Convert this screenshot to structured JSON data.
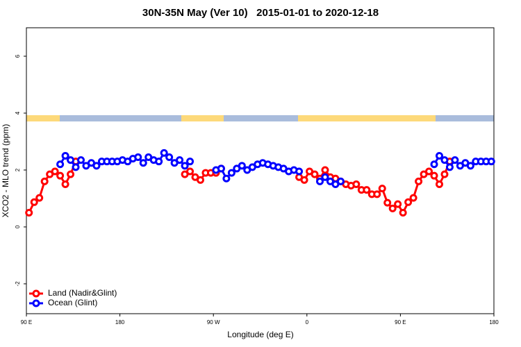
{
  "chart_data": {
    "type": "line",
    "title": "30N-35N May (Ver 10)   2015-01-01 to 2020-12-18",
    "x_label": "Longitude (deg E)",
    "y_label": "XCO2 - MLO trend (ppm)",
    "x": [
      92.5,
      97.5,
      102.5,
      107.5,
      112.5,
      117.5,
      122.5,
      127.5,
      132.5,
      137.5,
      142.5,
      147.5,
      152.5,
      157.5,
      162.5,
      167.5,
      172.5,
      177.5,
      182.5,
      187.5,
      192.5,
      197.5,
      202.5,
      207.5,
      212.5,
      217.5,
      222.5,
      227.5,
      232.5,
      237.5,
      242.5,
      247.5,
      252.5,
      257.5,
      262.5,
      267.5,
      272.5,
      277.5,
      282.5,
      287.5,
      292.5,
      297.5,
      302.5,
      307.5,
      312.5,
      317.5,
      322.5,
      327.5,
      332.5,
      337.5,
      342.5,
      347.5,
      352.5,
      357.5,
      362.5,
      367.5,
      372.5,
      377.5,
      382.5,
      387.5,
      392.5,
      397.5,
      402.5,
      407.5,
      412.5,
      417.5,
      422.5,
      427.5,
      432.5,
      437.5,
      442.5,
      447.5,
      452.5,
      457.5,
      462.5,
      467.5,
      472.5,
      477.5,
      482.5,
      487.5,
      492.5,
      497.5,
      502.5,
      507.5,
      512.5,
      517.5,
      522.5,
      527.5,
      532.5,
      537.5
    ],
    "series": [
      {
        "name": "Land (Nadir&Glint)",
        "color": "#ff0000",
        "values": [
          0.5,
          0.87,
          1.02,
          1.6,
          1.85,
          1.95,
          1.8,
          1.5,
          1.85,
          2.3,
          null,
          null,
          null,
          null,
          null,
          null,
          null,
          null,
          null,
          null,
          null,
          null,
          null,
          null,
          null,
          null,
          null,
          null,
          null,
          null,
          1.85,
          1.95,
          1.75,
          1.65,
          1.9,
          1.9,
          1.9,
          2.05,
          null,
          null,
          null,
          null,
          null,
          null,
          null,
          null,
          null,
          null,
          null,
          null,
          null,
          null,
          1.75,
          1.65,
          1.95,
          1.85,
          1.7,
          2.0,
          1.75,
          1.7,
          1.6,
          1.5,
          1.45,
          1.5,
          1.3,
          1.3,
          1.15,
          1.15,
          1.35,
          0.85,
          0.65,
          0.8,
          0.5,
          0.87,
          1.02,
          1.6,
          1.85,
          1.95,
          1.8,
          1.5,
          1.85,
          2.3,
          null,
          null,
          null,
          null,
          null,
          null,
          null,
          null
        ]
      },
      {
        "name": "Ocean (Glint)",
        "color": "#0000ff",
        "values": [
          null,
          null,
          null,
          null,
          null,
          null,
          2.2,
          2.5,
          2.35,
          2.1,
          2.35,
          2.15,
          2.25,
          2.15,
          2.3,
          2.3,
          2.3,
          2.3,
          2.35,
          2.3,
          2.4,
          2.45,
          2.25,
          2.45,
          2.35,
          2.3,
          2.6,
          2.45,
          2.25,
          2.35,
          2.15,
          2.3,
          null,
          null,
          null,
          null,
          2.0,
          2.05,
          1.7,
          1.9,
          2.05,
          2.15,
          2.0,
          2.1,
          2.2,
          2.25,
          2.2,
          2.15,
          2.1,
          2.05,
          1.95,
          2.0,
          1.95,
          null,
          null,
          null,
          1.6,
          1.75,
          1.6,
          1.5,
          1.6,
          null,
          null,
          null,
          null,
          null,
          null,
          null,
          null,
          null,
          null,
          null,
          null,
          null,
          null,
          null,
          null,
          null,
          2.2,
          2.5,
          2.35,
          2.1,
          2.35,
          2.15,
          2.25,
          2.15,
          2.3,
          2.3,
          2.3,
          2.3
        ]
      }
    ],
    "xlim": [
      90,
      540
    ],
    "xticks": [
      {
        "value": 90,
        "label": "90 E"
      },
      180,
      {
        "value": 270,
        "label": "90 W"
      },
      {
        "value": 360,
        "label": "0"
      },
      {
        "value": 450,
        "label": "90 E"
      },
      {
        "value": 540,
        "label": "180"
      }
    ],
    "ylim": [
      -3.05,
      7.0
    ],
    "yticks": [
      -2,
      0,
      2,
      4,
      6
    ],
    "legend": "bottomleft"
  }
}
